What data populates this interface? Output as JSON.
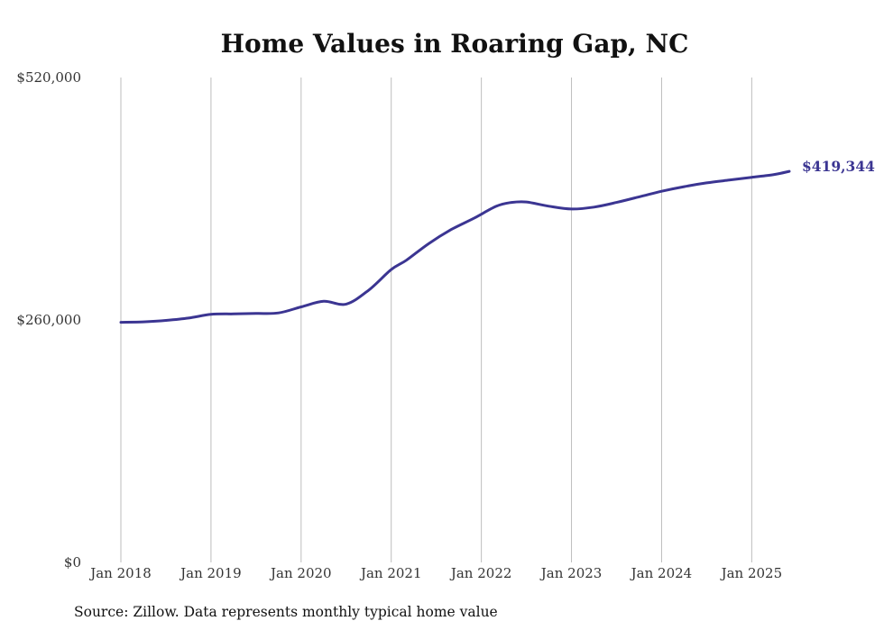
{
  "chart_data": {
    "type": "line",
    "title": "Home Values in Roaring Gap, NC",
    "source": "Source: Zillow. Data represents monthly typical home value",
    "xlabel": "",
    "ylabel": "",
    "ylim": [
      0,
      520000
    ],
    "xlim": [
      "2018-01",
      "2025-06"
    ],
    "grid": "vertical",
    "line_color": "#3b3592",
    "y_ticks": [
      {
        "value": 0,
        "label": "$0"
      },
      {
        "value": 260000,
        "label": "$260,000"
      },
      {
        "value": 520000,
        "label": "$520,000"
      }
    ],
    "x_ticks": [
      {
        "value": "2018-01",
        "label": "Jan 2018"
      },
      {
        "value": "2019-01",
        "label": "Jan 2019"
      },
      {
        "value": "2020-01",
        "label": "Jan 2020"
      },
      {
        "value": "2021-01",
        "label": "Jan 2021"
      },
      {
        "value": "2022-01",
        "label": "Jan 2022"
      },
      {
        "value": "2023-01",
        "label": "Jan 2023"
      },
      {
        "value": "2024-01",
        "label": "Jan 2024"
      },
      {
        "value": "2025-01",
        "label": "Jan 2025"
      }
    ],
    "end_label": "$419,344",
    "series": [
      {
        "x": [
          "2018-01",
          "2018-04",
          "2018-07",
          "2018-10",
          "2019-01",
          "2019-04",
          "2019-07",
          "2019-10",
          "2020-01",
          "2020-04",
          "2020-07",
          "2020-10",
          "2021-01",
          "2021-03",
          "2021-06",
          "2021-09",
          "2021-12",
          "2022-03",
          "2022-05",
          "2022-07",
          "2022-10",
          "2023-01",
          "2023-04",
          "2023-07",
          "2023-10",
          "2024-01",
          "2024-04",
          "2024-07",
          "2024-10",
          "2025-01",
          "2025-04",
          "2025-06"
        ],
        "y": [
          257500,
          258000,
          259500,
          262000,
          266000,
          266500,
          267000,
          267500,
          274000,
          280000,
          277000,
          292000,
          314000,
          324000,
          342000,
          357000,
          369000,
          382000,
          386000,
          386500,
          382000,
          379000,
          381000,
          386000,
          392000,
          398000,
          403000,
          407000,
          410000,
          413000,
          416000,
          419344
        ]
      }
    ]
  }
}
